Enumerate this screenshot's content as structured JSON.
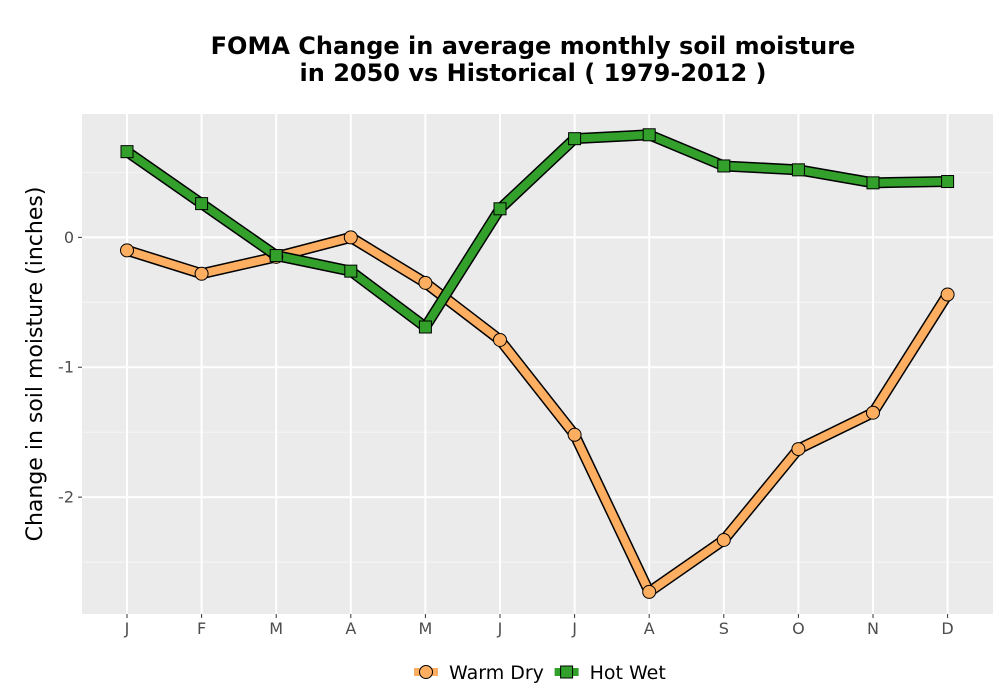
{
  "chart_data": {
    "type": "line",
    "title_lines": [
      "FOMA  Change in average monthly soil moisture",
      "in 2050 vs Historical ( 1979-2012 )"
    ],
    "xlabel": "",
    "ylabel": "Change in soil moisture (inches)",
    "categories": [
      "J",
      "F",
      "M",
      "A",
      "M",
      "J",
      "J",
      "A",
      "S",
      "O",
      "N",
      "D"
    ],
    "ylim": [
      -2.9,
      0.95
    ],
    "yticks": [
      0,
      -1,
      -2
    ],
    "ytick_labels": [
      "0",
      "-1",
      "-2"
    ],
    "grid": true,
    "legend_position": "bottom",
    "series": [
      {
        "name": "Warm Dry",
        "color": "#fdae61",
        "marker": "circle",
        "values": [
          -0.1,
          -0.28,
          -0.15,
          0.0,
          -0.35,
          -0.79,
          -1.52,
          -2.73,
          -2.33,
          -1.63,
          -1.35,
          -0.44
        ]
      },
      {
        "name": "Hot Wet",
        "color": "#33a02c",
        "marker": "square",
        "values": [
          0.66,
          0.26,
          -0.14,
          -0.26,
          -0.69,
          0.22,
          0.76,
          0.79,
          0.55,
          0.52,
          0.42,
          0.43
        ]
      }
    ]
  }
}
